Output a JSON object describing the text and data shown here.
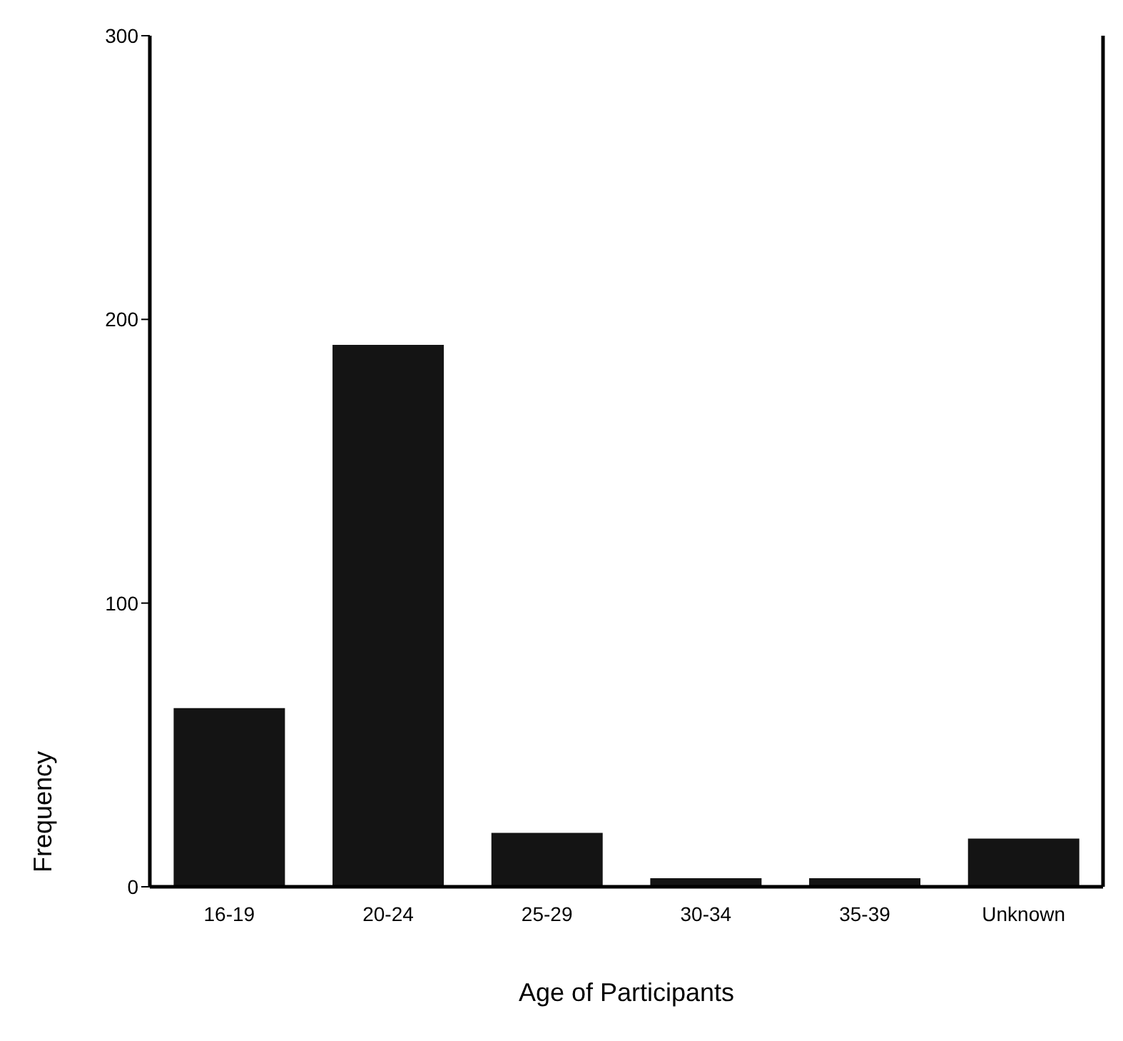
{
  "chart_data": {
    "type": "bar",
    "xlabel": "Age of Participants",
    "ylabel": "Frequency",
    "categories": [
      "16-19",
      "20-24",
      "25-29",
      "30-34",
      "35-39",
      "Unknown"
    ],
    "values": [
      63,
      191,
      19,
      3,
      3,
      17
    ],
    "color": "#141414",
    "ylim": [
      0,
      300
    ],
    "yticks": [
      0,
      100,
      200,
      300
    ],
    "grid": false
  }
}
